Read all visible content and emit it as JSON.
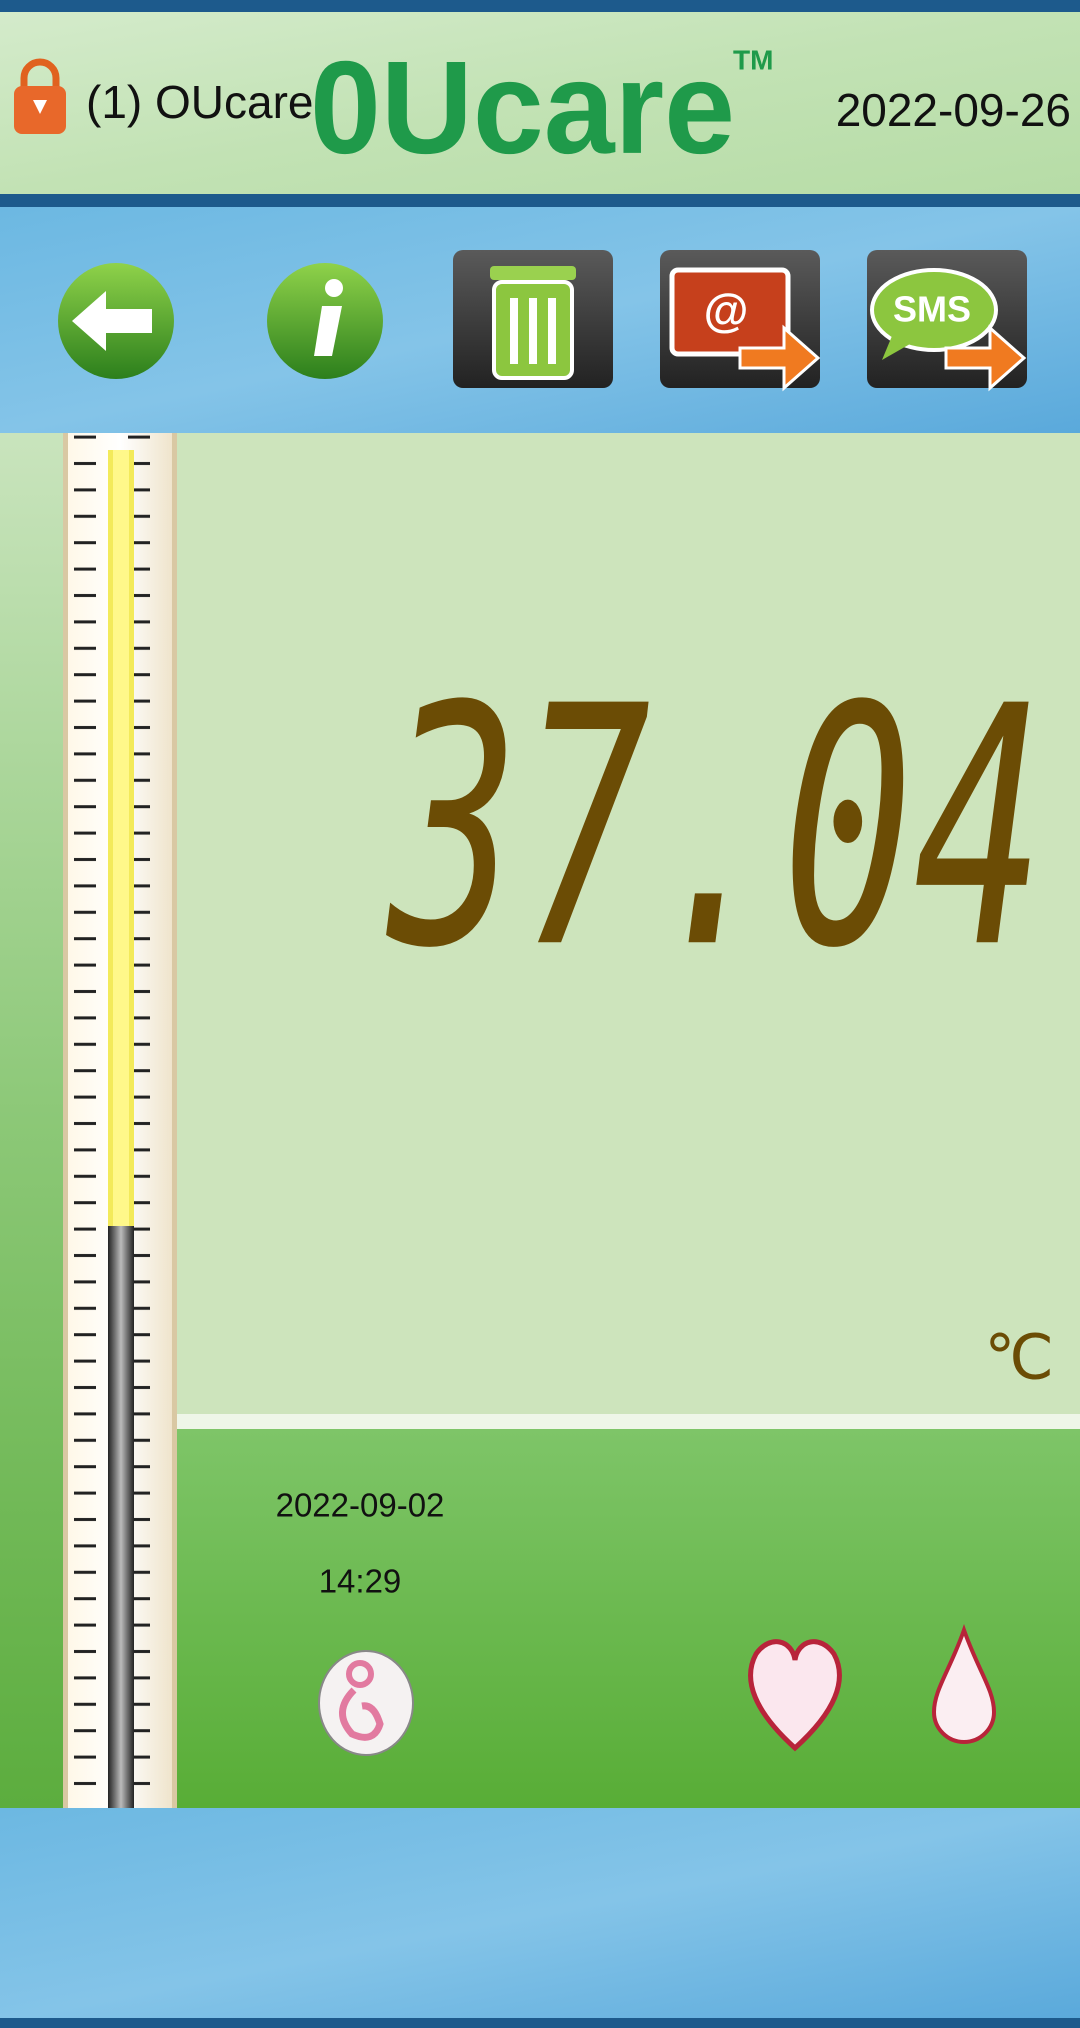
{
  "header": {
    "user": "(1) OUcare",
    "logo": "0Ucare",
    "trademark": "TM",
    "date": "2022-09-26"
  },
  "toolbar": {
    "email_label": "@",
    "sms_label": "SMS"
  },
  "reading": {
    "value": "37.04",
    "unit": "℃"
  },
  "record": {
    "date": "2022-09-02",
    "time": "14:29"
  }
}
